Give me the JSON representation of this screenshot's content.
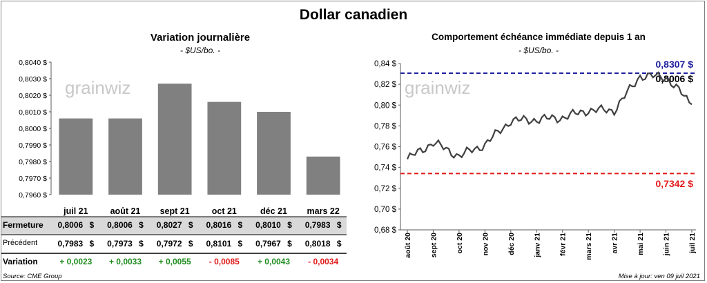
{
  "main_title": "Dollar canadien",
  "left": {
    "title": "Variation  journalière",
    "unit": "- $US/bo. -",
    "watermark": "grainwiz"
  },
  "right": {
    "title": "Comportement échéance immédiate depuis 1 an",
    "unit": "- $US/bo. -",
    "watermark": "grainwiz",
    "label_high": "0,8307 $",
    "label_last": "0,8006 $",
    "label_low": "0,7342 $"
  },
  "table": {
    "rows": [
      {
        "label": "Fermeture",
        "values": [
          "0,8006 $",
          "0,8006 $",
          "0,8027 $",
          "0,8016 $",
          "0,8010 $",
          "0,7983 $"
        ]
      },
      {
        "label": "Précédent",
        "values": [
          "0,7983 $",
          "0,7973 $",
          "0,7972 $",
          "0,8101 $",
          "0,7967 $",
          "0,8018 $"
        ]
      },
      {
        "label": "Variation",
        "values": [
          "+ 0,0023",
          "+ 0,0033",
          "+ 0,0055",
          "- 0,0085",
          "+ 0,0043",
          "- 0,0034"
        ]
      }
    ]
  },
  "footer": {
    "source": "Source: CME Group",
    "updated": "Mise à jour: ven 09 juil 2021"
  },
  "colors": {
    "bar": "#808080",
    "line": "#404040",
    "high_line": "#1f1f9f",
    "low_line": "#e01b1b",
    "positive": "#1e8c1e",
    "negative": "#e01b1b",
    "table_shade": "#d9d9d9"
  },
  "chart_data": [
    {
      "type": "bar",
      "title": "Variation  journalière",
      "subtitle": "- $US/bo. -",
      "categories": [
        "juil 21",
        "août 21",
        "sept 21",
        "oct 21",
        "déc 21",
        "mars 22"
      ],
      "values": [
        0.8006,
        0.8006,
        0.8027,
        0.8016,
        0.801,
        0.7983
      ],
      "ylim": [
        0.796,
        0.804
      ],
      "yticks": [
        "0,7960 $",
        "0,7970 $",
        "0,7980 $",
        "0,7990 $",
        "0,8000 $",
        "0,8010 $",
        "0,8020 $",
        "0,8030 $",
        "0,8040 $"
      ],
      "grid": false
    },
    {
      "type": "line",
      "title": "Comportement échéance immédiate depuis 1 an",
      "subtitle": "- $US/bo. -",
      "ylim": [
        0.68,
        0.84
      ],
      "yticks": [
        "0,68 $",
        "0,70 $",
        "0,72 $",
        "0,74 $",
        "0,76 $",
        "0,78 $",
        "0,80 $",
        "0,82 $",
        "0,84 $"
      ],
      "xticks": [
        "août 20",
        "sept 20",
        "oct 20",
        "nov 20",
        "déc 20",
        "janv 21",
        "févr 21",
        "mars 21",
        "avr 21",
        "mai 21",
        "juin 21",
        "juil 21"
      ],
      "x": [
        "août 20",
        "sept 20",
        "oct 20",
        "nov 20",
        "déc 20",
        "janv 21",
        "févr 21",
        "mars 21",
        "avr 21",
        "mai 21",
        "juin 21",
        "juil 21"
      ],
      "values": [
        0.748,
        0.764,
        0.751,
        0.762,
        0.785,
        0.786,
        0.788,
        0.795,
        0.795,
        0.828,
        0.827,
        0.8006
      ],
      "reference_lines": [
        {
          "label": "0,8307 $",
          "value": 0.8307
        },
        {
          "label": "0,7342 $",
          "value": 0.7342
        }
      ],
      "grid": false
    }
  ]
}
